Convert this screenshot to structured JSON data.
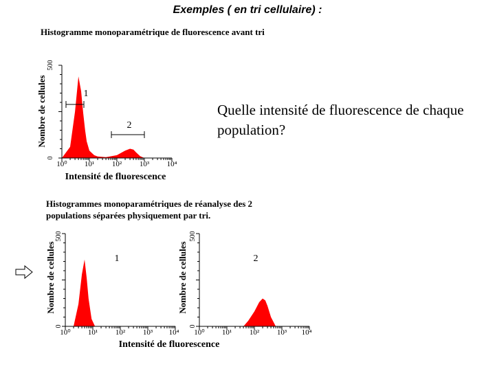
{
  "slide_title": "Exemples ( en tri cellulaire) :",
  "top_caption": "Histogramme monoparamétrique de fluorescence avant tri",
  "bottom_caption": "Histogrammes monoparamétriques de réanalyse des 2 populations séparées physiquement par tri.",
  "question": "Quelle intensité de fluorescence de chaque population?",
  "arrow_icon": "double-arrow-right-icon",
  "colors": {
    "fill": "#ff0000",
    "axis": "#000000"
  },
  "chart_data": [
    {
      "type": "area",
      "id": "before-sort",
      "xlabel": "Intensité de fluorescence",
      "ylabel": "Nombre de cellules",
      "x_scale": "log",
      "xlim": [
        1,
        10000
      ],
      "ylim": [
        0,
        500
      ],
      "x_ticks": [
        "10⁰",
        "10¹",
        "10²",
        "10³",
        "10⁴"
      ],
      "y_ticks": [
        "0",
        "500"
      ],
      "region_labels": [
        {
          "text": "1",
          "x_range": [
            1.2,
            3.5
          ]
        },
        {
          "text": "2",
          "x_range": [
            50,
            1000
          ]
        }
      ],
      "series": [
        {
          "x": [
            1,
            2,
            3,
            4,
            5,
            6,
            7,
            8,
            10,
            15,
            20,
            40,
            100,
            200,
            300,
            400,
            500,
            700,
            1000
          ],
          "y": [
            0,
            60,
            250,
            440,
            360,
            240,
            150,
            90,
            40,
            15,
            8,
            5,
            15,
            40,
            50,
            45,
            30,
            10,
            0
          ]
        }
      ]
    },
    {
      "type": "area",
      "id": "population-1",
      "region_label": "1",
      "ylabel": "Nombre de cellules",
      "x_scale": "log",
      "xlim": [
        1,
        10000
      ],
      "ylim": [
        0,
        500
      ],
      "x_ticks": [
        "10⁰",
        "10¹",
        "10²",
        "10³",
        "10⁴"
      ],
      "y_ticks": [
        "0",
        "500"
      ],
      "series": [
        {
          "x": [
            2,
            3,
            4,
            5,
            6,
            7,
            9,
            12
          ],
          "y": [
            0,
            120,
            280,
            360,
            260,
            150,
            40,
            0
          ]
        }
      ]
    },
    {
      "type": "area",
      "id": "population-2",
      "region_label": "2",
      "ylabel": "Nombre de cellules",
      "x_scale": "log",
      "xlim": [
        1,
        10000
      ],
      "ylim": [
        0,
        500
      ],
      "x_ticks": [
        "10⁰",
        "10¹",
        "10²",
        "10³",
        "10⁴"
      ],
      "y_ticks": [
        "0",
        "500"
      ],
      "series": [
        {
          "x": [
            40,
            60,
            100,
            150,
            200,
            250,
            300,
            400,
            600
          ],
          "y": [
            0,
            30,
            80,
            130,
            150,
            140,
            110,
            50,
            0
          ]
        }
      ]
    }
  ],
  "bottom_xlabel": "Intensité de fluorescence"
}
